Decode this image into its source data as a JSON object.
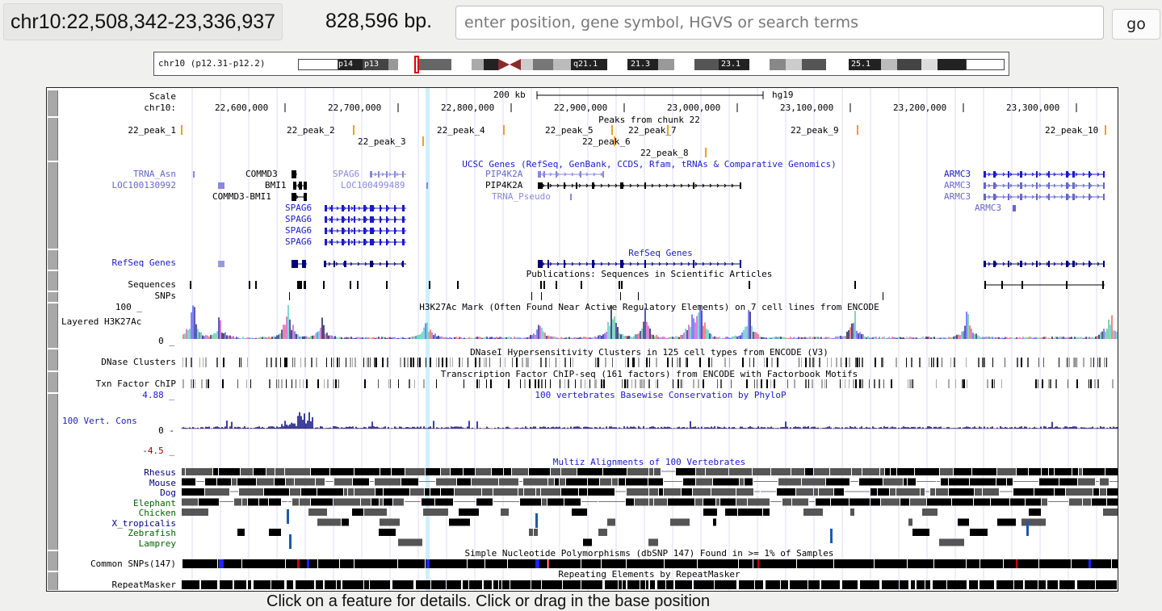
{
  "header": {
    "position": "chr10:22,508,342-23,336,937",
    "size": "828,596 bp.",
    "search_placeholder": "enter position, gene symbol, HGVS or search terms",
    "go_label": "go"
  },
  "ideogram": {
    "label": "chr10 (p12.31-p12.2)",
    "bands": [
      "p14",
      "p13",
      "q21.1",
      "21.3",
      "23.1",
      "25.1"
    ]
  },
  "scale": {
    "label": "Scale",
    "bar": "200 kb",
    "assembly": "hg19",
    "chrom_label": "chr10:",
    "ticks": [
      "22,600,000",
      "22,700,000",
      "22,800,000",
      "22,900,000",
      "23,000,000",
      "23,100,000",
      "23,200,000",
      "23,300,000"
    ]
  },
  "peaks": {
    "title": "Peaks from chunk 22",
    "items": [
      "22_peak_1",
      "22_peak_2",
      "22_peak_3",
      "22_peak_4",
      "22_peak_5",
      "22_peak_6",
      "22_peak_7",
      "22_peak_8",
      "22_peak_9",
      "22_peak_10"
    ]
  },
  "ucsc": {
    "title": "UCSC Genes (RefSeq, GenBank, CCDS, Rfam, tRNAs & Comparative Genomics)",
    "genes": [
      "TRNA_Asn",
      "LOC100130992",
      "COMMD3",
      "BMI1",
      "COMMD3-BMI1",
      "SPAG6",
      "LOC100499489",
      "SPAG6",
      "SPAG6",
      "SPAG6",
      "SPAG6",
      "PIP4K2A",
      "PIP4K2A",
      "TRNA_Pseudo",
      "ARMC3",
      "ARMC3",
      "ARMC3",
      "ARMC3"
    ]
  },
  "refseq": {
    "label": "RefSeq Genes",
    "title": "RefSeq Genes"
  },
  "pubs": {
    "label": "Sequences",
    "title": "Publications: Sequences in Scientific Articles"
  },
  "snps_label": "SNPs",
  "h3k27": {
    "label": "Layered H3K27Ac",
    "max": "100 _",
    "min": "0 _",
    "title": "H3K27Ac Mark (Often Found Near Active Regulatory Elements) on 7 cell lines from ENCODE"
  },
  "dnase": {
    "label": "DNase Clusters",
    "title": "DNaseI Hypersensitivity Clusters in 125 cell types from ENCODE (V3)"
  },
  "tfbs": {
    "label": "Txn Factor ChIP",
    "title": "Transcription Factor ChIP-seq (161 factors) from ENCODE with Factorbook Motifs"
  },
  "cons": {
    "label": "100 Vert. Cons",
    "max": "4.88 _",
    "zero": "0 -",
    "min": "-4.5 _",
    "title": "100 vertebrates Basewise Conservation by PhyloP"
  },
  "multiz": {
    "title": "Multiz Alignments of 100 Vertebrates",
    "species": [
      "Rhesus",
      "Mouse",
      "Dog",
      "Elephant",
      "Chicken",
      "X_tropicalis",
      "Zebrafish",
      "Lamprey"
    ],
    "colors": [
      "#000080",
      "#000080",
      "#000080",
      "#006400",
      "#006400",
      "#000080",
      "#006400",
      "#006400"
    ]
  },
  "common_snps": {
    "label": "Common SNPs(147)",
    "title": "Simple Nucleotide Polymorphisms (dbSNP 147) Found in >= 1% of Samples"
  },
  "repeats": {
    "label": "RepeatMasker",
    "title": "Repeating Elements by RepeatMasker"
  },
  "footer_note": "Click on a feature for details. Click or drag in the base position"
}
